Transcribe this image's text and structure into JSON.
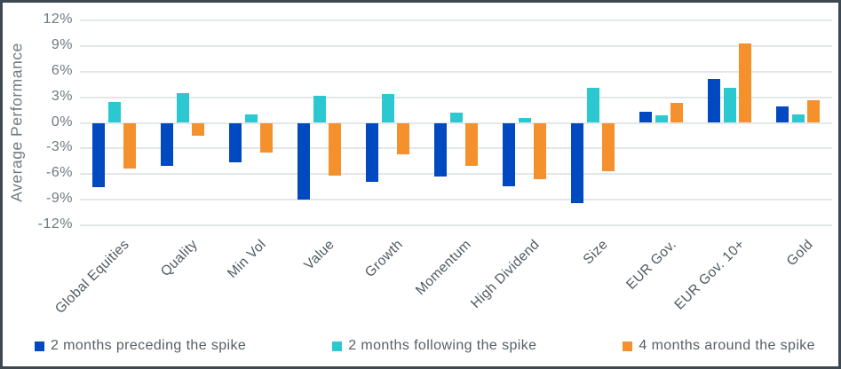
{
  "colors": {
    "frame_border": "#3E4850",
    "background": "#FFFFFF",
    "gridline": "#E3E7E8",
    "axis_text": "#6F7B81",
    "category_text": "#4F5A61",
    "legend_text": "#555F66"
  },
  "chart_data": {
    "type": "bar",
    "title": "",
    "xlabel": "",
    "ylabel": "Average Performance",
    "categories": [
      "Global Equities",
      "Quality",
      "Min Vol",
      "Value",
      "Growth",
      "Momentum",
      "High Dividend",
      "Size",
      "EUR Gov.",
      "EUR Gov. 10+",
      "Gold"
    ],
    "series": [
      {
        "name": "2 months preceding the spike",
        "color": "#0049C0",
        "values": [
          -7.5,
          -5.1,
          -4.6,
          -9.0,
          -6.9,
          -6.3,
          -7.4,
          -9.4,
          1.3,
          5.2,
          1.9
        ]
      },
      {
        "name": "2 months following the spike",
        "color": "#2CC8D2",
        "values": [
          2.4,
          3.5,
          1.0,
          3.2,
          3.4,
          1.2,
          0.6,
          4.1,
          0.9,
          4.1,
          1.0
        ]
      },
      {
        "name": "4 months around the spike",
        "color": "#F5912D",
        "values": [
          -5.4,
          -1.5,
          -3.5,
          -6.2,
          -3.7,
          -5.0,
          -6.6,
          -5.7,
          2.3,
          9.3,
          2.7
        ]
      }
    ],
    "ylim": [
      -12,
      12
    ],
    "ytick_step": 3,
    "ytick_labels": [
      "12%",
      "9%",
      "6%",
      "3%",
      "0%",
      "-3%",
      "-6%",
      "-9%",
      "-12%"
    ],
    "ytick_values": [
      12,
      9,
      6,
      3,
      0,
      -3,
      -6,
      -9,
      -12
    ],
    "grid": true,
    "legend_position": "bottom"
  }
}
